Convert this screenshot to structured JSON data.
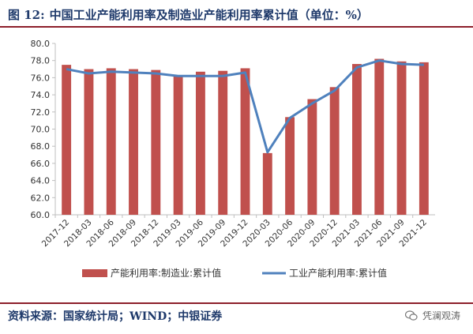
{
  "header": {
    "figure_number": "图 12:",
    "title": "中国工业产能利用率及制造业产能利用率累计值（单位：%）"
  },
  "footer": {
    "source": "资料来源：国家统计局；WIND；中银证券",
    "watermark": "凭澜观涛",
    "watermark_icon": "wechat-icon"
  },
  "colors": {
    "bar": "#c0504d",
    "line": "#4f81bd",
    "accent_rule": "#8c1f2a",
    "title_text": "#1f3a6b"
  },
  "chart_data": {
    "type": "bar+line",
    "categories": [
      "2017-12",
      "2018-03",
      "2018-06",
      "2018-09",
      "2018-12",
      "2019-03",
      "2019-06",
      "2019-09",
      "2019-12",
      "2020-03",
      "2020-06",
      "2020-09",
      "2020-12",
      "2021-03",
      "2021-06",
      "2021-09",
      "2021-12"
    ],
    "series": [
      {
        "name": "产能利用率:制造业:累计值",
        "type": "bar",
        "values": [
          77.5,
          77.0,
          77.1,
          77.0,
          76.9,
          76.3,
          76.7,
          76.8,
          77.1,
          67.2,
          71.4,
          73.5,
          74.9,
          77.6,
          78.2,
          77.9,
          77.8
        ]
      },
      {
        "name": "工业产能利用率:累计值",
        "type": "line",
        "values": [
          77.0,
          76.5,
          76.7,
          76.6,
          76.5,
          76.2,
          76.2,
          76.2,
          76.6,
          67.3,
          71.3,
          73.0,
          74.5,
          77.2,
          78.0,
          77.6,
          77.5
        ]
      }
    ],
    "ylim": [
      60,
      80
    ],
    "yticks": [
      "60.0",
      "62.0",
      "64.0",
      "66.0",
      "68.0",
      "70.0",
      "72.0",
      "74.0",
      "76.0",
      "78.0",
      "80.0"
    ],
    "grid": false,
    "legend_position": "bottom"
  }
}
